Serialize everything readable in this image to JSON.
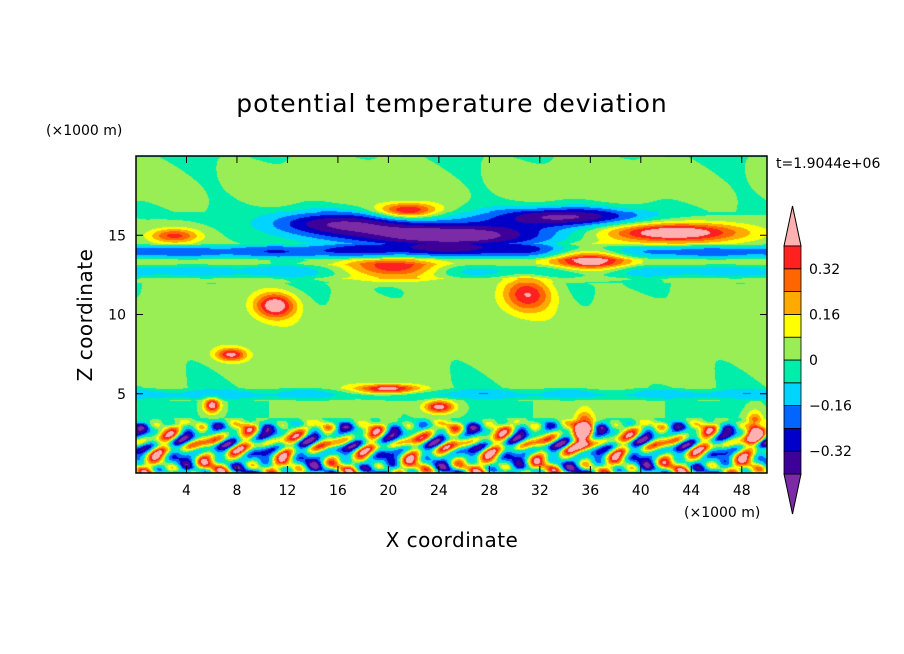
{
  "chart_data": {
    "type": "heatmap",
    "title": "potential temperature deviation",
    "xlabel": "X coordinate",
    "ylabel": "Z coordinate",
    "x_units": "(×1000 m)",
    "y_units": "(×1000 m)",
    "time_label": "t=1.9044e+06",
    "xlim": [
      0,
      50
    ],
    "ylim": [
      0,
      20
    ],
    "x_ticks": [
      4,
      8,
      12,
      16,
      20,
      24,
      28,
      32,
      36,
      40,
      44,
      48
    ],
    "y_ticks": [
      5,
      10,
      15
    ],
    "colorbar": {
      "levels": [
        -0.48,
        -0.4,
        -0.32,
        -0.24,
        -0.16,
        -0.08,
        0,
        0.08,
        0.16,
        0.24,
        0.32,
        0.4,
        0.48
      ],
      "tick_values": [
        0.32,
        0.16,
        0,
        -0.16,
        -0.32
      ],
      "tick_labels": [
        "0.32",
        "0.16",
        "0",
        "−0.16",
        "−0.32"
      ],
      "colors": [
        "#7b2ba6",
        "#3d0099",
        "#0000c8",
        "#0066ff",
        "#00d4ff",
        "#00eeaa",
        "#99ee55",
        "#ffff00",
        "#ffaa00",
        "#ff6600",
        "#ff2020",
        "#ffb0b0"
      ],
      "extend": "both"
    },
    "features": [
      {
        "type": "band",
        "x": [
          0,
          50
        ],
        "z": [
          16.5,
          20
        ],
        "value": 0.03
      },
      {
        "type": "band",
        "x": [
          0,
          50
        ],
        "z": [
          13.5,
          14.5
        ],
        "value": -0.2
      },
      {
        "type": "band",
        "x": [
          0,
          50
        ],
        "z": [
          12.3,
          13.2
        ],
        "value": -0.12
      },
      {
        "type": "band",
        "x": [
          0,
          50
        ],
        "z": [
          5,
          12
        ],
        "value": 0.04
      },
      {
        "type": "band",
        "x": [
          0,
          50
        ],
        "z": [
          4.6,
          5.4
        ],
        "value": -0.1
      },
      {
        "type": "blob",
        "x": 16,
        "z": 15.8,
        "rx": 7,
        "rz": 1,
        "value": -0.32
      },
      {
        "type": "blob",
        "x": 25,
        "z": 15,
        "rx": 10,
        "rz": 1,
        "value": -0.44
      },
      {
        "type": "blob",
        "x": 34,
        "z": 16.2,
        "rx": 8,
        "rz": 0.8,
        "value": -0.36
      },
      {
        "type": "blob",
        "x": 21.5,
        "z": 16.6,
        "rx": 3,
        "rz": 0.6,
        "value": 0.4
      },
      {
        "type": "blob",
        "x": 3,
        "z": 15,
        "rx": 2.5,
        "rz": 0.6,
        "value": 0.3
      },
      {
        "type": "blob",
        "x": 20,
        "z": 12.9,
        "rx": 5,
        "rz": 0.8,
        "value": 0.42
      },
      {
        "type": "blob",
        "x": 11,
        "z": 10.6,
        "rx": 2,
        "rz": 1,
        "value": 0.4
      },
      {
        "type": "blob",
        "x": 31,
        "z": 11.3,
        "rx": 2.5,
        "rz": 1.4,
        "value": 0.32
      },
      {
        "type": "blob",
        "x": 36,
        "z": 13.5,
        "rx": 4,
        "rz": 1,
        "value": 0.44
      },
      {
        "type": "blob",
        "x": 42.5,
        "z": 15.2,
        "rx": 7,
        "rz": 0.8,
        "value": 0.46
      },
      {
        "type": "blob",
        "x": 7.5,
        "z": 7.5,
        "rx": 1.5,
        "rz": 0.5,
        "value": 0.34
      },
      {
        "type": "blob",
        "x": 20,
        "z": 5.3,
        "rx": 3,
        "rz": 0.4,
        "value": 0.44
      },
      {
        "type": "blob",
        "x": 24,
        "z": 4.2,
        "rx": 1.5,
        "rz": 0.5,
        "value": 0.4
      },
      {
        "type": "blob",
        "x": 35.5,
        "z": 2.6,
        "rx": 1,
        "rz": 1.5,
        "value": 0.44
      },
      {
        "type": "blob",
        "x": 6,
        "z": 4.3,
        "rx": 0.8,
        "rz": 0.6,
        "value": 0.42
      },
      {
        "type": "blob",
        "x": 49,
        "z": 2.8,
        "rx": 0.8,
        "rz": 1.2,
        "value": 0.42
      },
      {
        "type": "turbulent",
        "x": [
          0,
          50
        ],
        "z": [
          0,
          3.5
        ]
      }
    ]
  }
}
